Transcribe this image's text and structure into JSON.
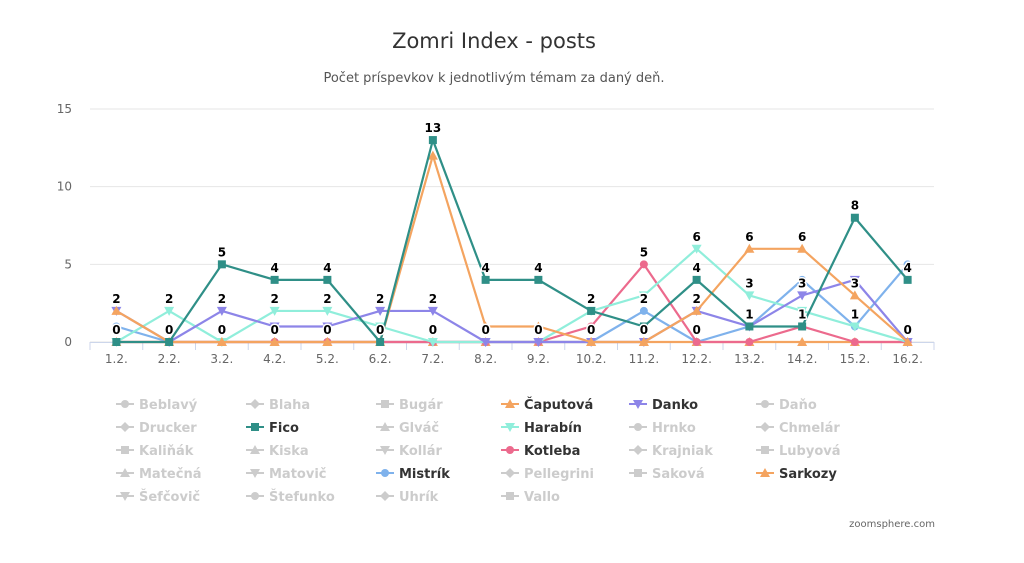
{
  "chart_data": {
    "type": "line",
    "title": "Zomri Index - posts",
    "subtitle": "Počet príspevkov k jednotlivým témam za daný deň.",
    "credit": "zoomsphere.com",
    "categories": [
      "1.2.",
      "2.2.",
      "3.2.",
      "4.2.",
      "5.2.",
      "6.2.",
      "7.2.",
      "8.2.",
      "9.2.",
      "10.2.",
      "11.2.",
      "12.2.",
      "13.2.",
      "14.2.",
      "15.2.",
      "16.2."
    ],
    "ylim": [
      0,
      15
    ],
    "yticks": [
      0,
      5,
      10,
      15
    ],
    "grid": true,
    "legend_placement": "bottom",
    "series": [
      {
        "name": "Fico",
        "color": "#2f8f87",
        "marker": "square",
        "visible": true,
        "values": [
          0,
          0,
          5,
          4,
          4,
          0,
          13,
          4,
          4,
          2,
          1,
          4,
          1,
          1,
          8,
          4
        ],
        "labels": true
      },
      {
        "name": "Čaputová",
        "color": "#f4a460",
        "marker": "triangle",
        "visible": true,
        "values": [
          2,
          0,
          0,
          0,
          0,
          0,
          12,
          1,
          1,
          0,
          0,
          2,
          6,
          6,
          3,
          0
        ],
        "labels": false
      },
      {
        "name": "Danko",
        "color": "#8d85e8",
        "marker": "triangle-down",
        "visible": true,
        "values": [
          2,
          0,
          2,
          1,
          1,
          2,
          2,
          0,
          0,
          0,
          0,
          2,
          1,
          3,
          4,
          0
        ],
        "labels": false
      },
      {
        "name": "Harabín",
        "color": "#90eedb",
        "marker": "triangle-down",
        "visible": true,
        "values": [
          0,
          2,
          0,
          2,
          2,
          1,
          0,
          0,
          0,
          2,
          3,
          6,
          3,
          2,
          1,
          0
        ],
        "labels": false
      },
      {
        "name": "Kotleba",
        "color": "#ec6a8d",
        "marker": "circle",
        "visible": true,
        "values": [
          0,
          0,
          0,
          0,
          0,
          0,
          0,
          0,
          0,
          1,
          5,
          0,
          0,
          1,
          0,
          0
        ],
        "labels": false
      },
      {
        "name": "Mistrík",
        "color": "#7fb2ec",
        "marker": "circle",
        "visible": true,
        "values": [
          1,
          0,
          0,
          0,
          0,
          0,
          0,
          0,
          0,
          0,
          2,
          0,
          1,
          4,
          1,
          5
        ],
        "labels": false
      },
      {
        "name": "Sarkozy",
        "color": "#f4a460",
        "marker": "triangle",
        "visible": true,
        "values": [
          0,
          0,
          0,
          0,
          0,
          0,
          0,
          0,
          0,
          0,
          0,
          0,
          0,
          0,
          0,
          0
        ],
        "labels": false
      }
    ],
    "annotations": [
      {
        "x": "1.2.",
        "y": 2,
        "text": "2"
      },
      {
        "x": "1.2.",
        "y": 0,
        "text": "0"
      },
      {
        "x": "2.2.",
        "y": 2,
        "text": "2"
      },
      {
        "x": "2.2.",
        "y": 0,
        "text": "0"
      },
      {
        "x": "3.2.",
        "y": 5,
        "text": "5"
      },
      {
        "x": "3.2.",
        "y": 2,
        "text": "2"
      },
      {
        "x": "3.2.",
        "y": 0,
        "text": "0"
      },
      {
        "x": "4.2.",
        "y": 4,
        "text": "4"
      },
      {
        "x": "4.2.",
        "y": 2,
        "text": "2"
      },
      {
        "x": "4.2.",
        "y": 0,
        "text": "0"
      },
      {
        "x": "5.2.",
        "y": 4,
        "text": "4"
      },
      {
        "x": "5.2.",
        "y": 2,
        "text": "2"
      },
      {
        "x": "5.2.",
        "y": 0,
        "text": "0"
      },
      {
        "x": "6.2.",
        "y": 2,
        "text": "2"
      },
      {
        "x": "6.2.",
        "y": 0,
        "text": "0"
      },
      {
        "x": "7.2.",
        "y": 13,
        "text": "13"
      },
      {
        "x": "7.2.",
        "y": 2,
        "text": "2"
      },
      {
        "x": "7.2.",
        "y": 0,
        "text": "0"
      },
      {
        "x": "8.2.",
        "y": 4,
        "text": "4"
      },
      {
        "x": "8.2.",
        "y": 0,
        "text": "0"
      },
      {
        "x": "9.2.",
        "y": 4,
        "text": "4"
      },
      {
        "x": "9.2.",
        "y": 0,
        "text": "0"
      },
      {
        "x": "10.2.",
        "y": 2,
        "text": "2"
      },
      {
        "x": "10.2.",
        "y": 0,
        "text": "0"
      },
      {
        "x": "11.2.",
        "y": 5,
        "text": "5"
      },
      {
        "x": "11.2.",
        "y": 2,
        "text": "2"
      },
      {
        "x": "11.2.",
        "y": 0,
        "text": "0"
      },
      {
        "x": "12.2.",
        "y": 6,
        "text": "6"
      },
      {
        "x": "12.2.",
        "y": 4,
        "text": "4"
      },
      {
        "x": "12.2.",
        "y": 2,
        "text": "2"
      },
      {
        "x": "12.2.",
        "y": 0,
        "text": "0"
      },
      {
        "x": "13.2.",
        "y": 6,
        "text": "6"
      },
      {
        "x": "13.2.",
        "y": 3,
        "text": "3"
      },
      {
        "x": "13.2.",
        "y": 1,
        "text": "1"
      },
      {
        "x": "14.2.",
        "y": 6,
        "text": "6"
      },
      {
        "x": "14.2.",
        "y": 3,
        "text": "3"
      },
      {
        "x": "14.2.",
        "y": 1,
        "text": "1"
      },
      {
        "x": "15.2.",
        "y": 8,
        "text": "8"
      },
      {
        "x": "15.2.",
        "y": 3,
        "text": "3"
      },
      {
        "x": "15.2.",
        "y": 1,
        "text": "1"
      },
      {
        "x": "16.2.",
        "y": 4,
        "text": "4"
      },
      {
        "x": "16.2.",
        "y": 0,
        "text": "0"
      }
    ],
    "legend": [
      {
        "name": "Beblavý",
        "marker": "circle",
        "active": false
      },
      {
        "name": "Blaha",
        "marker": "diamond",
        "active": false
      },
      {
        "name": "Bugár",
        "marker": "square",
        "active": false
      },
      {
        "name": "Čaputová",
        "marker": "triangle",
        "active": true,
        "color": "#f4a460"
      },
      {
        "name": "Danko",
        "marker": "triangle-down",
        "active": true,
        "color": "#8d85e8"
      },
      {
        "name": "Daňo",
        "marker": "circle",
        "active": false
      },
      {
        "name": "Drucker",
        "marker": "diamond",
        "active": false
      },
      {
        "name": "Fico",
        "marker": "square",
        "active": true,
        "color": "#2f8f87"
      },
      {
        "name": "Glváč",
        "marker": "triangle",
        "active": false
      },
      {
        "name": "Harabín",
        "marker": "triangle-down",
        "active": true,
        "color": "#90eedb"
      },
      {
        "name": "Hrnko",
        "marker": "circle",
        "active": false
      },
      {
        "name": "Chmelár",
        "marker": "diamond",
        "active": false
      },
      {
        "name": "Kaliňák",
        "marker": "square",
        "active": false
      },
      {
        "name": "Kiska",
        "marker": "triangle",
        "active": false
      },
      {
        "name": "Kollár",
        "marker": "triangle-down",
        "active": false
      },
      {
        "name": "Kotleba",
        "marker": "circle",
        "active": true,
        "color": "#ec6a8d"
      },
      {
        "name": "Krajniak",
        "marker": "diamond",
        "active": false
      },
      {
        "name": "Lubyová",
        "marker": "square",
        "active": false
      },
      {
        "name": "Matečná",
        "marker": "triangle",
        "active": false
      },
      {
        "name": "Matovič",
        "marker": "triangle-down",
        "active": false
      },
      {
        "name": "Mistrík",
        "marker": "circle",
        "active": true,
        "color": "#7fb2ec"
      },
      {
        "name": "Pellegrini",
        "marker": "diamond",
        "active": false
      },
      {
        "name": "Saková",
        "marker": "square",
        "active": false
      },
      {
        "name": "Sarkozy",
        "marker": "triangle",
        "active": true,
        "color": "#f4a460"
      },
      {
        "name": "Šefčovič",
        "marker": "triangle-down",
        "active": false
      },
      {
        "name": "Štefunko",
        "marker": "circle",
        "active": false
      },
      {
        "name": "Uhrík",
        "marker": "diamond",
        "active": false
      },
      {
        "name": "Vallo",
        "marker": "square",
        "active": false
      }
    ],
    "inactive_color": "#cccccc",
    "legend_text_color": "#333333",
    "grid_color": "#e6e6e6",
    "axis_color": "#ccd6eb"
  }
}
